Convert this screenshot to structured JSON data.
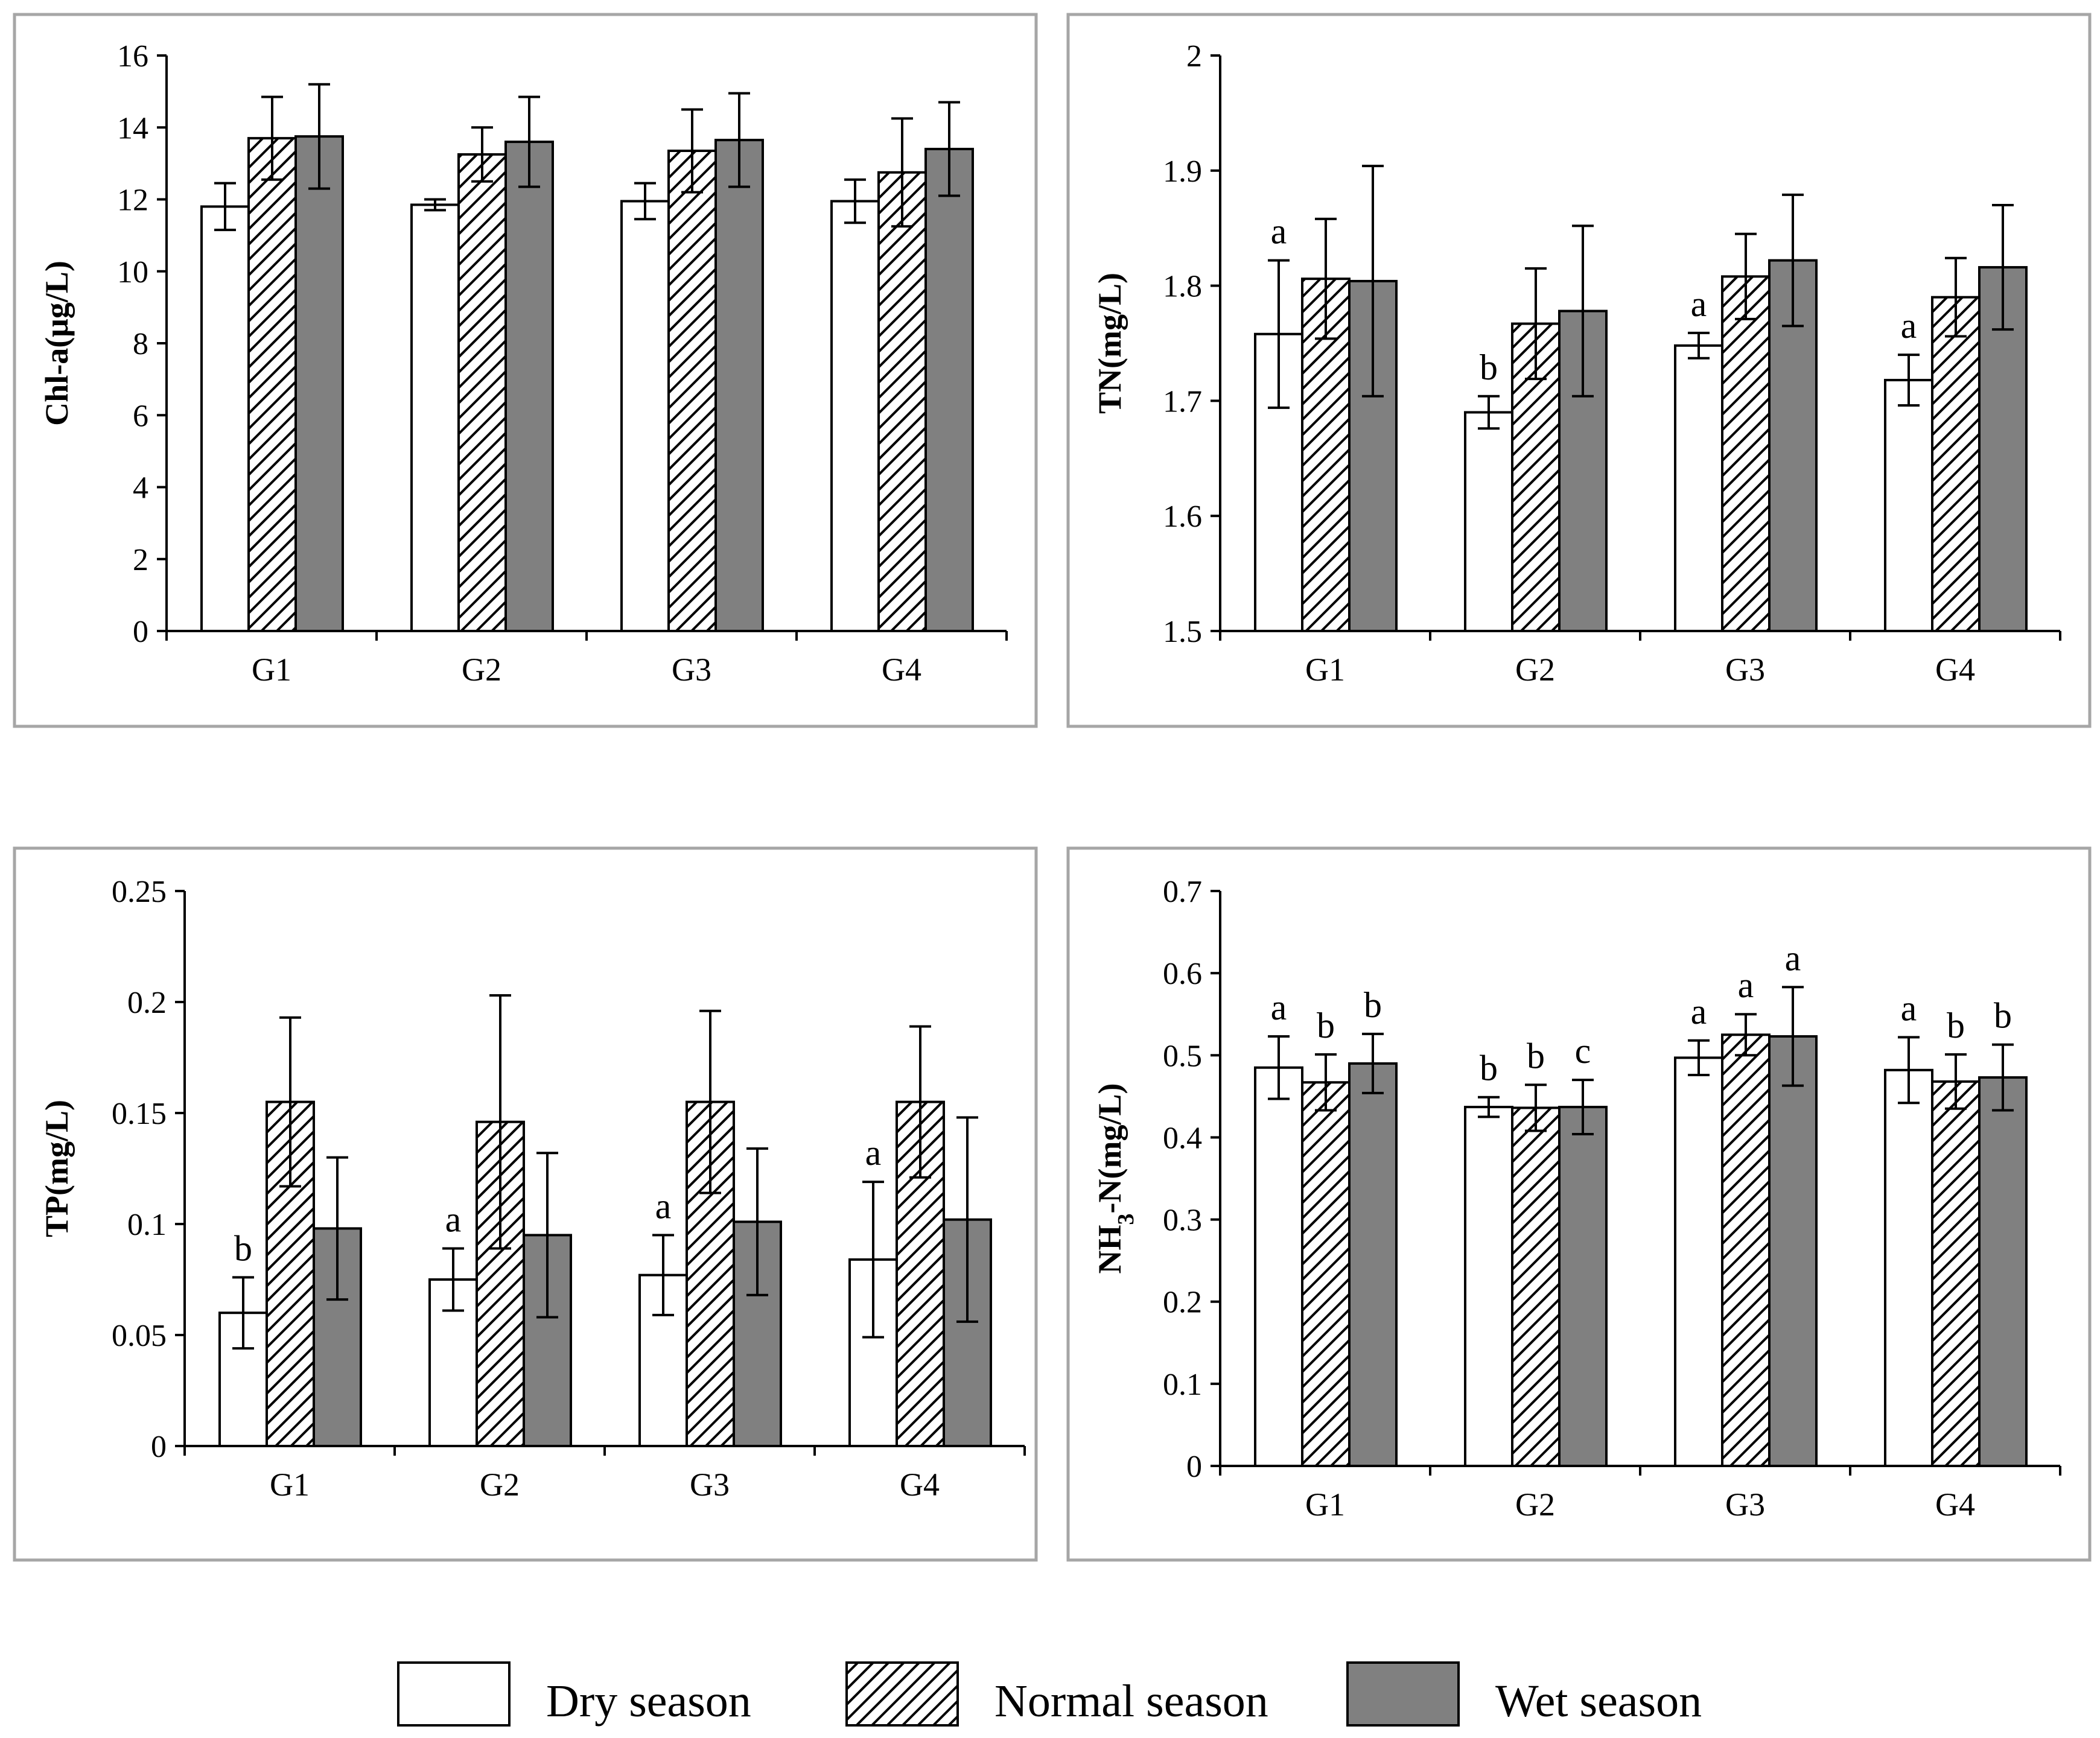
{
  "colors": {
    "dry": "#ffffff",
    "wet": "#808080",
    "frame": "#a6a6a6",
    "ink": "#000000"
  },
  "legend": [
    {
      "key": "dry",
      "label": "Dry season"
    },
    {
      "key": "normal",
      "label": "Normal season"
    },
    {
      "key": "wet",
      "label": "Wet season"
    }
  ],
  "chart_data": [
    {
      "type": "bar",
      "id": "chla",
      "ylabel": "Chl-a(μg/L)",
      "ylim": [
        0,
        16
      ],
      "yticks": [
        "0",
        "2",
        "4",
        "6",
        "8",
        "10",
        "12",
        "14",
        "16"
      ],
      "categories": [
        "G1",
        "G2",
        "G3",
        "G4"
      ],
      "series": [
        {
          "name": "Dry season",
          "values": [
            11.8,
            11.85,
            11.95,
            11.95
          ],
          "errors": [
            0.65,
            0.15,
            0.5,
            0.6
          ],
          "labels": [
            "",
            "",
            "",
            ""
          ]
        },
        {
          "name": "Normal season",
          "values": [
            13.7,
            13.25,
            13.35,
            12.75
          ],
          "errors": [
            1.15,
            0.75,
            1.15,
            1.5
          ],
          "labels": [
            "",
            "",
            "",
            ""
          ]
        },
        {
          "name": "Wet season",
          "values": [
            13.75,
            13.6,
            13.65,
            13.4
          ],
          "errors": [
            1.45,
            1.25,
            1.3,
            1.3
          ],
          "labels": [
            "",
            "",
            "",
            ""
          ]
        }
      ]
    },
    {
      "type": "bar",
      "id": "tn",
      "ylabel": "TN(mg/L)",
      "ylim": [
        1.5,
        2.0
      ],
      "yticks": [
        "1.5",
        "1.6",
        "1.7",
        "1.8",
        "1.9",
        "2"
      ],
      "categories": [
        "G1",
        "G2",
        "G3",
        "G4"
      ],
      "series": [
        {
          "name": "Dry season",
          "values": [
            1.758,
            1.69,
            1.748,
            1.718
          ],
          "errors": [
            0.064,
            0.014,
            0.011,
            0.022
          ],
          "labels": [
            "a",
            "b",
            "a",
            "a"
          ]
        },
        {
          "name": "Normal season",
          "values": [
            1.806,
            1.767,
            1.808,
            1.79
          ],
          "errors": [
            0.052,
            0.048,
            0.037,
            0.034
          ],
          "labels": [
            "",
            "",
            "",
            ""
          ]
        },
        {
          "name": "Wet season",
          "values": [
            1.804,
            1.778,
            1.822,
            1.816
          ],
          "errors": [
            0.1,
            0.074,
            0.057,
            0.054
          ],
          "labels": [
            "",
            "",
            "",
            ""
          ]
        }
      ]
    },
    {
      "type": "bar",
      "id": "tp",
      "ylabel": "TP(mg/L)",
      "ylim": [
        0,
        0.25
      ],
      "yticks": [
        "0",
        "0.05",
        "0.1",
        "0.15",
        "0.2",
        "0.25"
      ],
      "categories": [
        "G1",
        "G2",
        "G3",
        "G4"
      ],
      "series": [
        {
          "name": "Dry season",
          "values": [
            0.06,
            0.075,
            0.077,
            0.084
          ],
          "errors": [
            0.016,
            0.014,
            0.018,
            0.035
          ],
          "labels": [
            "b",
            "a",
            "a",
            "a"
          ]
        },
        {
          "name": "Normal season",
          "values": [
            0.155,
            0.146,
            0.155,
            0.155
          ],
          "errors": [
            0.038,
            0.057,
            0.041,
            0.034
          ],
          "labels": [
            "",
            "",
            "",
            ""
          ]
        },
        {
          "name": "Wet season",
          "values": [
            0.098,
            0.095,
            0.101,
            0.102
          ],
          "errors": [
            0.032,
            0.037,
            0.033,
            0.046
          ],
          "labels": [
            "",
            "",
            "",
            ""
          ]
        }
      ]
    },
    {
      "type": "bar",
      "id": "nh3n",
      "ylabel_main": "NH",
      "ylabel_sub": "3",
      "ylabel_tail": "-N(mg/L)",
      "ylim": [
        0,
        0.7
      ],
      "yticks": [
        "0",
        "0.1",
        "0.2",
        "0.3",
        "0.4",
        "0.5",
        "0.6",
        "0.7"
      ],
      "categories": [
        "G1",
        "G2",
        "G3",
        "G4"
      ],
      "series": [
        {
          "name": "Dry season",
          "values": [
            0.485,
            0.437,
            0.497,
            0.482
          ],
          "errors": [
            0.038,
            0.012,
            0.021,
            0.04
          ],
          "labels": [
            "a",
            "b",
            "a",
            "a"
          ]
        },
        {
          "name": "Normal season",
          "values": [
            0.467,
            0.436,
            0.525,
            0.468
          ],
          "errors": [
            0.034,
            0.028,
            0.025,
            0.033
          ],
          "labels": [
            "b",
            "b",
            "a",
            "b"
          ]
        },
        {
          "name": "Wet season",
          "values": [
            0.49,
            0.437,
            0.523,
            0.473
          ],
          "errors": [
            0.036,
            0.033,
            0.06,
            0.04
          ],
          "labels": [
            "b",
            "c",
            "a",
            "b"
          ]
        }
      ]
    }
  ]
}
